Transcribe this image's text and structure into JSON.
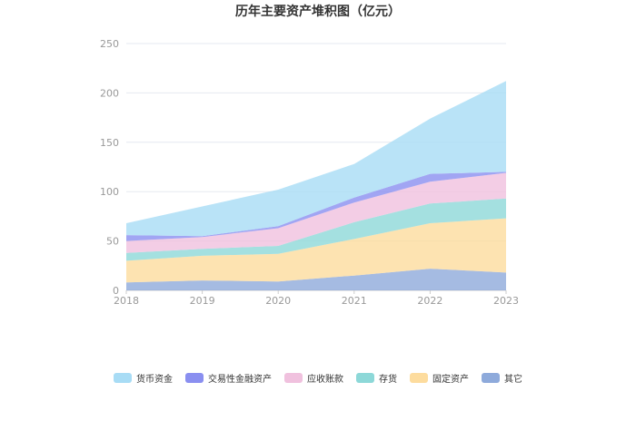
{
  "chart_data": {
    "type": "area",
    "stacked": true,
    "title": "历年主要资产堆积图（亿元）",
    "x": [
      "2018",
      "2019",
      "2020",
      "2021",
      "2022",
      "2023"
    ],
    "ylim": [
      0,
      250
    ],
    "yticks": [
      0,
      50,
      100,
      150,
      200,
      250
    ],
    "grid": true,
    "legend_position": "bottom",
    "series": [
      {
        "name": "其它",
        "color": "#8eaadb",
        "values": [
          8,
          10,
          9,
          15,
          22,
          18
        ]
      },
      {
        "name": "固定资产",
        "color": "#fddc9e",
        "values": [
          22,
          25,
          28,
          37,
          46,
          55
        ]
      },
      {
        "name": "存货",
        "color": "#8dd8d8",
        "values": [
          8,
          7,
          8,
          17,
          20,
          20
        ]
      },
      {
        "name": "应收账款",
        "color": "#f0c1de",
        "values": [
          12,
          12,
          18,
          20,
          22,
          26
        ]
      },
      {
        "name": "交易性金融资产",
        "color": "#8a8ff0",
        "values": [
          6,
          1,
          2,
          5,
          8,
          1
        ]
      },
      {
        "name": "货币资金",
        "color": "#a8dcf5",
        "values": [
          12,
          30,
          37,
          34,
          56,
          92
        ]
      }
    ]
  }
}
